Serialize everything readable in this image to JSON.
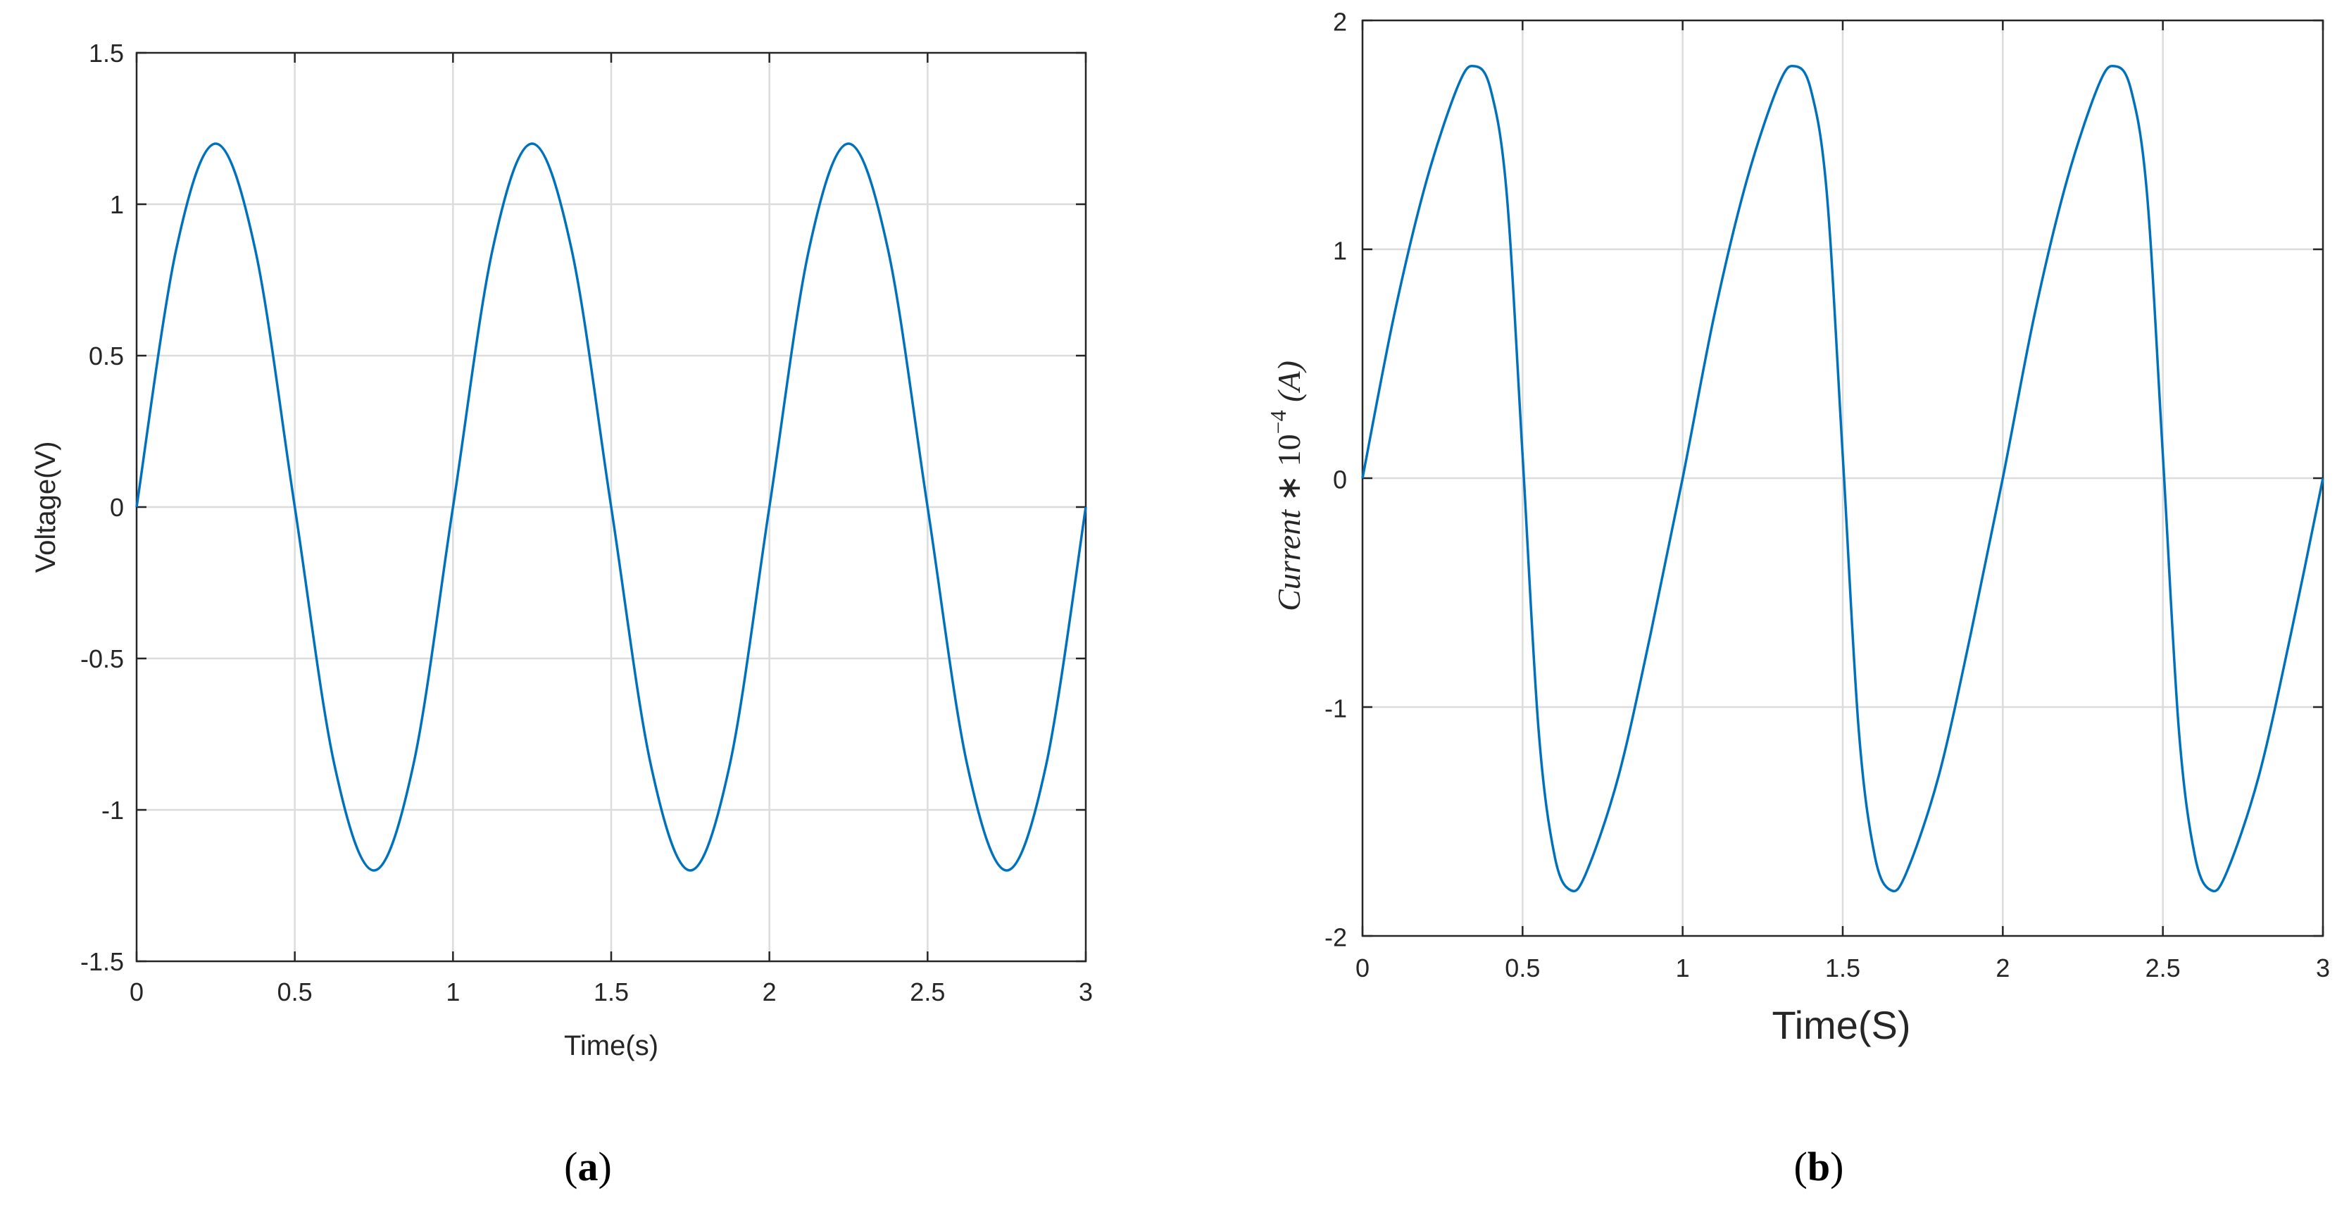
{
  "chart_data": [
    {
      "type": "line",
      "panel_label": "a",
      "xlabel": "Time(s)",
      "ylabel": "Voltage(V)",
      "xlim": [
        0,
        3
      ],
      "ylim": [
        -1.5,
        1.5
      ],
      "xticks": [
        "0",
        "0.5",
        "1",
        "1.5",
        "2",
        "2.5",
        "3"
      ],
      "yticks": [
        "-1.5",
        "-1",
        "-0.5",
        "0",
        "0.5",
        "1",
        "1.5"
      ],
      "grid": true,
      "line_color": "#0072BD",
      "series": [
        {
          "x": [
            0,
            0.125,
            0.25,
            0.375,
            0.5,
            0.625,
            0.75,
            0.875,
            1.0,
            1.125,
            1.25,
            1.375,
            1.5,
            1.625,
            1.75,
            1.875,
            2.0,
            2.125,
            2.25,
            2.375,
            2.5,
            2.625,
            2.75,
            2.875,
            3.0
          ],
          "y": [
            0,
            0.85,
            1.2,
            0.85,
            0,
            -0.85,
            -1.2,
            -0.85,
            0,
            0.85,
            1.2,
            0.85,
            0,
            -0.85,
            -1.2,
            -0.85,
            0,
            0.85,
            1.2,
            0.85,
            0,
            -0.85,
            -1.2,
            -0.85,
            0
          ]
        }
      ]
    },
    {
      "type": "line",
      "panel_label": "b",
      "xlabel": "Time(S)",
      "ylabel": "Current * 10^-4 (A)",
      "ylabel_parts": {
        "main": "Current",
        "op": " ∗ ",
        "base": "10",
        "exp": "−4",
        "unit": " (A)"
      },
      "xlim": [
        0,
        3
      ],
      "ylim": [
        -2,
        2
      ],
      "xticks": [
        "0",
        "0.5",
        "1",
        "1.5",
        "2",
        "2.5",
        "3"
      ],
      "yticks": [
        "-2",
        "-1",
        "0",
        "1",
        "2"
      ],
      "grid": true,
      "line_color": "#0072BD",
      "series": [
        {
          "x": [
            0,
            0.1,
            0.2,
            0.3,
            0.35,
            0.4,
            0.45,
            0.5,
            0.55,
            0.6,
            0.65,
            0.7,
            0.8,
            0.9,
            1.0,
            1.1,
            1.2,
            1.3,
            1.35,
            1.4,
            1.45,
            1.5,
            1.55,
            1.6,
            1.65,
            1.7,
            1.8,
            1.9,
            2.0,
            2.1,
            2.2,
            2.3,
            2.35,
            2.4,
            2.45,
            2.5,
            2.55,
            2.6,
            2.65,
            2.7,
            2.8,
            2.9,
            3.0
          ],
          "y": [
            0,
            0.72,
            1.3,
            1.72,
            1.8,
            1.7,
            1.25,
            0.1,
            -1.1,
            -1.65,
            -1.8,
            -1.72,
            -1.3,
            -0.68,
            0,
            0.72,
            1.3,
            1.72,
            1.8,
            1.7,
            1.25,
            0.1,
            -1.1,
            -1.65,
            -1.8,
            -1.72,
            -1.3,
            -0.68,
            0,
            0.72,
            1.3,
            1.72,
            1.8,
            1.7,
            1.25,
            0.1,
            -1.1,
            -1.65,
            -1.8,
            -1.72,
            -1.3,
            -0.68,
            0
          ]
        }
      ]
    }
  ]
}
